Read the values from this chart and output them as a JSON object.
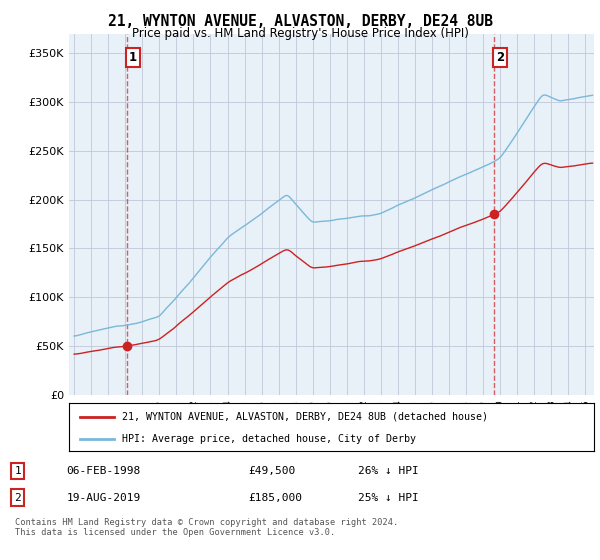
{
  "title": "21, WYNTON AVENUE, ALVASTON, DERBY, DE24 8UB",
  "subtitle": "Price paid vs. HM Land Registry's House Price Index (HPI)",
  "ytick_values": [
    0,
    50000,
    100000,
    150000,
    200000,
    250000,
    300000,
    350000
  ],
  "ylim": [
    0,
    370000
  ],
  "xlim_start": 1994.7,
  "xlim_end": 2025.5,
  "sale1_date": 1998.09,
  "sale1_price": 49500,
  "sale2_date": 2019.63,
  "sale2_price": 185000,
  "hpi_color": "#7ab8d9",
  "price_color": "#cc2222",
  "plot_bg_color": "#e8f0f8",
  "legend_label1": "21, WYNTON AVENUE, ALVASTON, DERBY, DE24 8UB (detached house)",
  "legend_label2": "HPI: Average price, detached house, City of Derby",
  "footer": "Contains HM Land Registry data © Crown copyright and database right 2024.\nThis data is licensed under the Open Government Licence v3.0.",
  "background_color": "#ffffff",
  "grid_color": "#c0c8d8"
}
